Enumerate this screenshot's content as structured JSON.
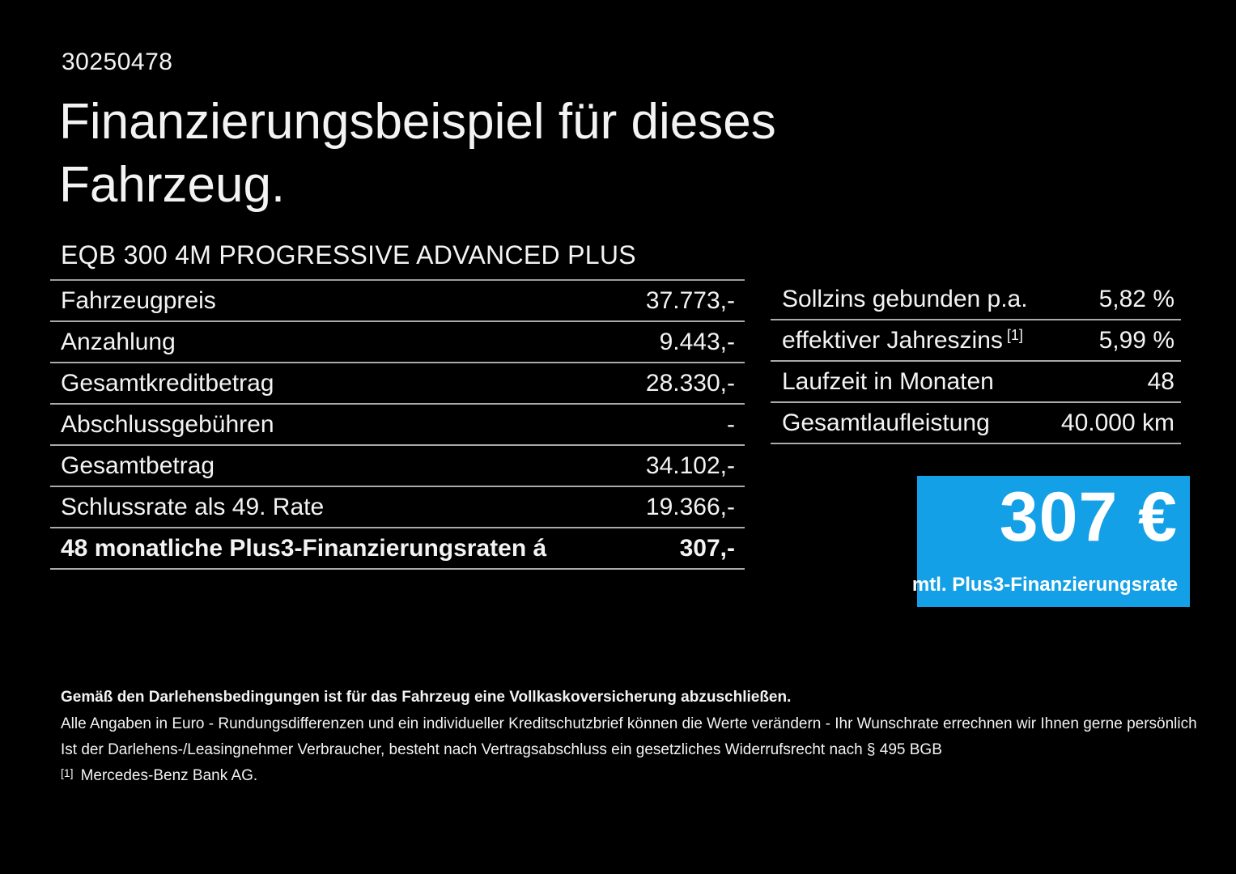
{
  "page": {
    "background": "#000000",
    "offer_id": "30250478",
    "title": "Finanzierungsbeispiel für dieses Fahrzeug.",
    "vehicle_name": "EQB 300 4M PROGRESSIVE ADVANCED PLUS"
  },
  "finance_table": {
    "rows": [
      {
        "label": "Fahrzeugpreis",
        "value": "37.773,-"
      },
      {
        "label": "Anzahlung",
        "value": "9.443,-"
      },
      {
        "label": "Gesamtkreditbetrag",
        "value": "28.330,-"
      },
      {
        "label": "Abschlussgebühren",
        "value": "-"
      },
      {
        "label": "Gesamtbetrag",
        "value": "34.102,-"
      },
      {
        "label": "Schlussrate als 49. Rate",
        "value": "19.366,-"
      },
      {
        "label": "48 monatliche Plus3-Finanzierungsraten á",
        "value": "307,-"
      }
    ]
  },
  "conditions_table": {
    "rows": [
      {
        "label": "Sollzins gebunden p.a.",
        "footnote": "",
        "value": "5,82 %"
      },
      {
        "label": "effektiver Jahreszins",
        "footnote": "[1]",
        "value": "5,99 %"
      },
      {
        "label": "Laufzeit in Monaten",
        "footnote": "",
        "value": "48"
      },
      {
        "label": "Gesamtlaufleistung",
        "footnote": "",
        "value": "40.000 km"
      }
    ]
  },
  "rate_box": {
    "amount": "307 €",
    "caption": "mtl. Plus3-Finanzierungsrate",
    "background": "#14a0e6",
    "text_color": "#ffffff"
  },
  "disclaimer": {
    "insurance_note": "Gemäß den Darlehensbedingungen ist für das Fahrzeug eine Vollkaskoversicherung abzuschließen.",
    "euro_note": "Alle Angaben in Euro - Rundungsdifferenzen und ein individueller Kreditschutzbrief können die Werte verändern - Ihr Wunschrate errechnen wir Ihnen gerne persönlich",
    "withdrawal_note": "Ist der Darlehens-/Leasingnehmer Verbraucher, besteht nach Vertragsabschluss ein gesetzliches Widerrufsrecht nach § 495 BGB",
    "footnote_marker": "[1]",
    "footnote_text": "Mercedes-Benz Bank AG."
  }
}
